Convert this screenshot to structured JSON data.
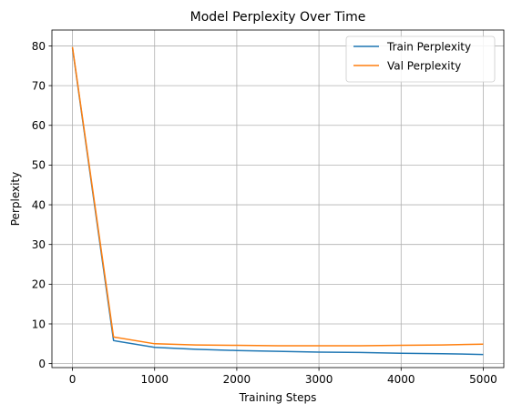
{
  "chart_data": {
    "type": "line",
    "title": "Model Perplexity Over Time",
    "xlabel": "Training Steps",
    "ylabel": "Perplexity",
    "xlim": [
      -250,
      5250
    ],
    "ylim": [
      -1,
      84
    ],
    "xticks": [
      0,
      1000,
      2000,
      3000,
      4000,
      5000
    ],
    "yticks": [
      0,
      10,
      20,
      30,
      40,
      50,
      60,
      70,
      80
    ],
    "grid": true,
    "legend_position": "top-right",
    "x": [
      0,
      500,
      1000,
      1500,
      2000,
      2500,
      3000,
      3500,
      4000,
      4500,
      5000
    ],
    "series": [
      {
        "name": "Train Perplexity",
        "color": "#1f77b4",
        "values": [
          79.5,
          5.8,
          4.1,
          3.6,
          3.3,
          3.1,
          2.9,
          2.8,
          2.6,
          2.5,
          2.3
        ]
      },
      {
        "name": "Val Perplexity",
        "color": "#ff7f0e",
        "values": [
          79.7,
          6.7,
          5.0,
          4.7,
          4.6,
          4.5,
          4.5,
          4.5,
          4.6,
          4.7,
          4.9
        ]
      }
    ]
  }
}
